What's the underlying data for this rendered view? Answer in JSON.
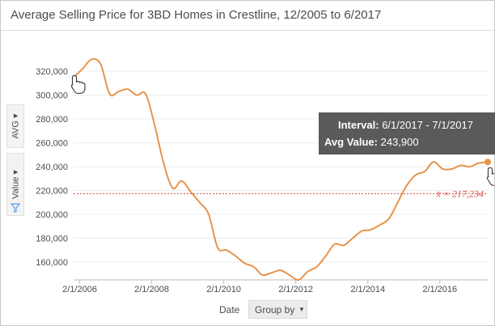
{
  "chart_data": {
    "type": "line",
    "title": "Average Selling Price for 3BD Homes in Crestline, 12/2005 to 6/2017",
    "x": [
      "2005-12-01",
      "2006-03-01",
      "2006-06-01",
      "2006-09-01",
      "2006-12-01",
      "2007-03-01",
      "2007-06-01",
      "2007-09-01",
      "2007-12-01",
      "2008-03-01",
      "2008-06-01",
      "2008-09-01",
      "2008-12-01",
      "2009-03-01",
      "2009-06-01",
      "2009-09-01",
      "2009-12-01",
      "2010-03-01",
      "2010-06-01",
      "2010-09-01",
      "2010-12-01",
      "2011-03-01",
      "2011-06-01",
      "2011-09-01",
      "2011-12-01",
      "2012-03-01",
      "2012-06-01",
      "2012-09-01",
      "2012-12-01",
      "2013-03-01",
      "2013-06-01",
      "2013-09-01",
      "2013-12-01",
      "2014-03-01",
      "2014-06-01",
      "2014-09-01",
      "2014-12-01",
      "2015-03-01",
      "2015-06-01",
      "2015-09-01",
      "2015-12-01",
      "2016-03-01",
      "2016-06-01",
      "2016-09-01",
      "2016-12-01",
      "2017-03-01",
      "2017-06-01"
    ],
    "series": [
      {
        "values": [
          315000,
          322000,
          330000,
          326000,
          301000,
          303000,
          305000,
          300000,
          301000,
          275000,
          243000,
          222000,
          228000,
          219000,
          210000,
          200000,
          172000,
          170000,
          165000,
          159000,
          156000,
          149000,
          151000,
          153000,
          149000,
          145000,
          152000,
          156000,
          165000,
          175000,
          174000,
          180000,
          186000,
          187000,
          191000,
          196000,
          210000,
          224000,
          233000,
          236000,
          244000,
          238000,
          238000,
          241000,
          240000,
          243000,
          243900
        ]
      }
    ],
    "ylim": [
      145000,
      335000
    ],
    "yticks": [
      "160,000",
      "180,000",
      "200,000",
      "220,000",
      "240,000",
      "260,000",
      "280,000",
      "300,000",
      "320,000"
    ],
    "ytick_values": [
      160000,
      180000,
      200000,
      220000,
      240000,
      260000,
      280000,
      300000,
      320000
    ],
    "xticks": [
      "2/1/2006",
      "2/1/2008",
      "2/1/2010",
      "2/1/2012",
      "2/1/2014",
      "2/1/2016"
    ],
    "xtick_dates": [
      "2006-02-01",
      "2008-02-01",
      "2010-02-01",
      "2012-02-01",
      "2014-02-01",
      "2016-02-01"
    ],
    "mean": 217234,
    "mean_label": "x̄ = 217,234",
    "grid": "horizontal",
    "line_color": "#e8934a",
    "mean_color": "#d9534f"
  },
  "tooltip": {
    "interval_key": "Interval:",
    "interval_value": "6/1/2017 - 7/1/2017",
    "value_key": "Avg Value:",
    "value_value": "243,900"
  },
  "controls": {
    "aggregation_label": "AVG",
    "value_label": "Value",
    "x_field_label": "Date",
    "group_by_label": "Group by",
    "pointer_icons": [
      "hand-pointer-icon",
      "hand-pointer-icon"
    ],
    "filter_icon": "funnel-icon"
  }
}
